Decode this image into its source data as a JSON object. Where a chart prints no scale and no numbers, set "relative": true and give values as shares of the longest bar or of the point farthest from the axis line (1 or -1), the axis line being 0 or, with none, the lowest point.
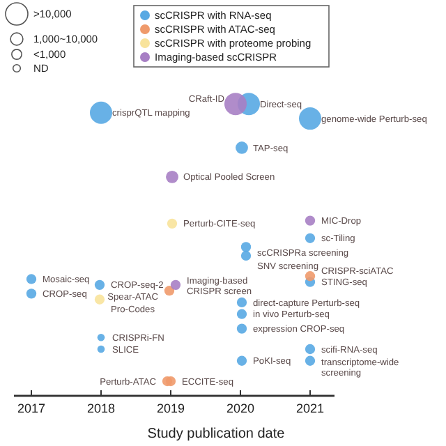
{
  "chart_data": {
    "type": "bubble",
    "relative": true,
    "xlabel": "Study publication date",
    "xlim": [
      2016.75,
      2021.35
    ],
    "xticks": [
      2017,
      2018,
      2019,
      2020,
      2021
    ],
    "legend": "top",
    "grid": false,
    "size_legend": [
      {
        "value": 1,
        "label": ">10,000"
      },
      {
        "value": 0.31,
        "label": "1,000~10,000"
      },
      {
        "value": 0.2,
        "label": "<1,000"
      },
      {
        "value": 0.11,
        "label": "ND"
      }
    ],
    "series": [
      {
        "name": "scCRISPR with RNA-seq",
        "color": "#58a9e3",
        "x": [
          2018.0,
          2020.12,
          2021.0,
          2020.02,
          2021.0,
          2020.08,
          2020.08,
          2021.0,
          2017.0,
          2017.0,
          2017.98,
          2018.0,
          2018.0,
          2020.02,
          2020.02,
          2020.02,
          2020.02,
          2021.0,
          2021.0
        ],
        "values": [
          0.97,
          1.0,
          0.95,
          0.85,
          0.54,
          0.51,
          0.48,
          0.39,
          0.4,
          0.35,
          0.38,
          0.2,
          0.16,
          0.32,
          0.28,
          0.23,
          0.12,
          0.16,
          0.12
        ],
        "sizes": [
          1,
          1,
          1,
          0.31,
          0.2,
          0.2,
          0.2,
          0.2,
          0.2,
          0.2,
          0.2,
          0.11,
          0.11,
          0.2,
          0.2,
          0.2,
          0.2,
          0.2,
          0.2
        ]
      },
      {
        "name": "scCRISPR with ATAC-seq",
        "color": "#ef9a6b",
        "x": [
          2021.0,
          2018.98,
          2018.95,
          2019.0
        ],
        "values": [
          0.41,
          0.36,
          0.05,
          0.05
        ],
        "sizes": [
          0.2,
          0.2,
          0.2,
          0.2
        ]
      },
      {
        "name": "scCRISPR with proteome probing",
        "color": "#f8e39b",
        "x": [
          2019.02,
          2017.98
        ],
        "values": [
          0.59,
          0.33
        ],
        "sizes": [
          0.2,
          0.2
        ]
      },
      {
        "name": "Imaging-based scCRISPR",
        "color": "#a77fc4",
        "x": [
          2019.93,
          2019.02,
          2021.0,
          2019.07
        ],
        "values": [
          1.0,
          0.75,
          0.6,
          0.38
        ],
        "sizes": [
          1,
          0.31,
          0.2,
          0.2
        ]
      }
    ],
    "annotations": [
      {
        "text": "crisprQTL mapping",
        "x": 2018.0,
        "y": 0.97
      },
      {
        "text": "Direct-seq",
        "x": 2020.12,
        "y": 1.0
      },
      {
        "text": "genome-wide Perturb-seq",
        "x": 2021.0,
        "y": 0.95
      },
      {
        "text": "TAP-seq",
        "x": 2020.02,
        "y": 0.85
      },
      {
        "text": "sc-Tiling",
        "x": 2021.0,
        "y": 0.54
      },
      {
        "text": "scCRISPRa screening",
        "x": 2020.08,
        "y": 0.51
      },
      {
        "text": "SNV screening",
        "x": 2020.08,
        "y": 0.48
      },
      {
        "text": "STING-seq",
        "x": 2021.0,
        "y": 0.39
      },
      {
        "text": "Mosaic-seq",
        "x": 2017.0,
        "y": 0.4
      },
      {
        "text": "CROP-seq",
        "x": 2017.0,
        "y": 0.35
      },
      {
        "text": "CROP-seq-2",
        "x": 2017.98,
        "y": 0.38
      },
      {
        "text": "CRISPRi-FN",
        "x": 2018.0,
        "y": 0.2
      },
      {
        "text": "SLICE",
        "x": 2018.0,
        "y": 0.16
      },
      {
        "text": "direct-capture Perturb-seq",
        "x": 2020.02,
        "y": 0.32
      },
      {
        "text": "in vivo Perturb-seq",
        "x": 2020.02,
        "y": 0.28
      },
      {
        "text": "expression CROP-seq",
        "x": 2020.02,
        "y": 0.23
      },
      {
        "text": "PoKI-seq",
        "x": 2020.02,
        "y": 0.12
      },
      {
        "text": "scifi-RNA-seq",
        "x": 2021.0,
        "y": 0.16
      },
      {
        "text": "transcriptome-wide screening",
        "x": 2021.0,
        "y": 0.12
      },
      {
        "text": "CRISPR-sciATAC",
        "x": 2021.0,
        "y": 0.41
      },
      {
        "text": "Spear-ATAC",
        "x": 2018.98,
        "y": 0.36
      },
      {
        "text": "Perturb-ATAC",
        "x": 2018.95,
        "y": 0.05
      },
      {
        "text": "ECCITE-seq",
        "x": 2019.0,
        "y": 0.05
      },
      {
        "text": "Perturb-CITE-seq",
        "x": 2019.02,
        "y": 0.59
      },
      {
        "text": "Pro-Codes",
        "x": 2017.98,
        "y": 0.33
      },
      {
        "text": "CRaft-ID",
        "x": 2019.93,
        "y": 1.0
      },
      {
        "text": "Optical Pooled Screen",
        "x": 2019.02,
        "y": 0.75
      },
      {
        "text": "MIC-Drop",
        "x": 2021.0,
        "y": 0.6
      },
      {
        "text": "Imaging-based CRISPR screen",
        "x": 2019.07,
        "y": 0.38
      }
    ]
  }
}
